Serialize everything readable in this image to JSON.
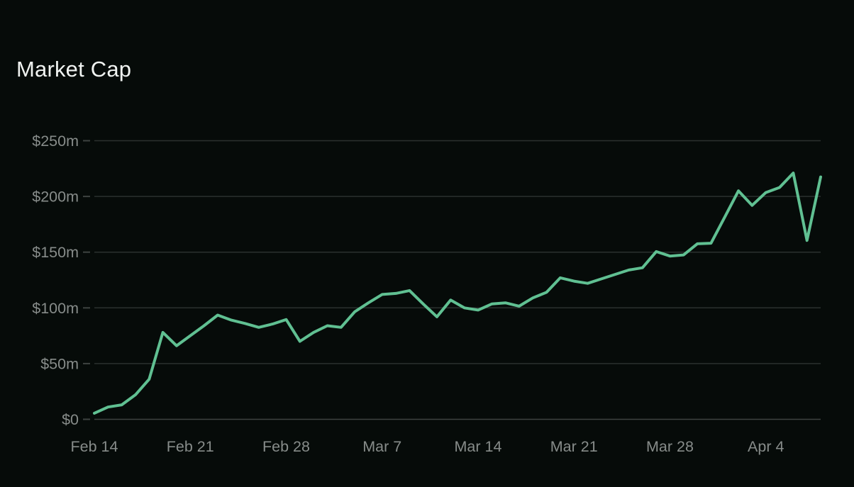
{
  "chart": {
    "title": "Market Cap",
    "title_color": "#f0f3f1",
    "background_color": "#060b09",
    "line_color": "#60c092",
    "grid_color": "#2b302e",
    "zero_line_color": "#3e4341",
    "tick_color": "#3e4341",
    "label_color": "#878c8a"
  },
  "chart_data": {
    "type": "line",
    "title": "Market Cap",
    "xlabel": "",
    "ylabel": "",
    "unit": "$m",
    "grid": true,
    "legend": false,
    "ylim": [
      0,
      250
    ],
    "y_tick_values": [
      0,
      50,
      100,
      150,
      200,
      250
    ],
    "y_tick_labels": [
      "$0",
      "$50m",
      "$100m",
      "$150m",
      "$200m",
      "$250m"
    ],
    "x_tick_positions": [
      0,
      7,
      14,
      21,
      28,
      35,
      42,
      49
    ],
    "x_tick_labels": [
      "Feb 14",
      "Feb 21",
      "Feb 28",
      "Mar 7",
      "Mar 14",
      "Mar 21",
      "Mar 28",
      "Apr 4"
    ],
    "x": [
      "Feb 14",
      "Feb 15",
      "Feb 16",
      "Feb 17",
      "Feb 18",
      "Feb 19",
      "Feb 20",
      "Feb 21",
      "Feb 22",
      "Feb 23",
      "Feb 24",
      "Feb 25",
      "Feb 26",
      "Feb 27",
      "Feb 28",
      "Mar 1",
      "Mar 2",
      "Mar 3",
      "Mar 4",
      "Mar 5",
      "Mar 6",
      "Mar 7",
      "Mar 8",
      "Mar 9",
      "Mar 10",
      "Mar 11",
      "Mar 12",
      "Mar 13",
      "Mar 14",
      "Mar 15",
      "Mar 16",
      "Mar 17",
      "Mar 18",
      "Mar 19",
      "Mar 20",
      "Mar 21",
      "Mar 22",
      "Mar 23",
      "Mar 24",
      "Mar 25",
      "Mar 26",
      "Mar 27",
      "Mar 28",
      "Mar 29",
      "Mar 30",
      "Mar 31",
      "Apr 1",
      "Apr 2",
      "Apr 3",
      "Apr 4",
      "Apr 5",
      "Apr 6",
      "Apr 7",
      "Apr 8"
    ],
    "values": [
      5.5,
      11,
      13,
      22,
      36,
      78,
      66,
      75,
      84,
      93.5,
      89,
      86,
      82.5,
      85.5,
      89.5,
      70,
      78,
      84,
      82.5,
      96.5,
      104.5,
      112,
      113,
      115.5,
      103.5,
      92,
      107,
      100,
      98,
      103.5,
      104.5,
      101.5,
      109,
      114,
      127,
      124,
      122,
      126,
      130,
      134,
      136,
      150.5,
      146.5,
      147.5,
      157.5,
      158,
      181.5,
      205,
      192,
      203.5,
      208,
      221,
      160.5,
      217.5
    ]
  }
}
